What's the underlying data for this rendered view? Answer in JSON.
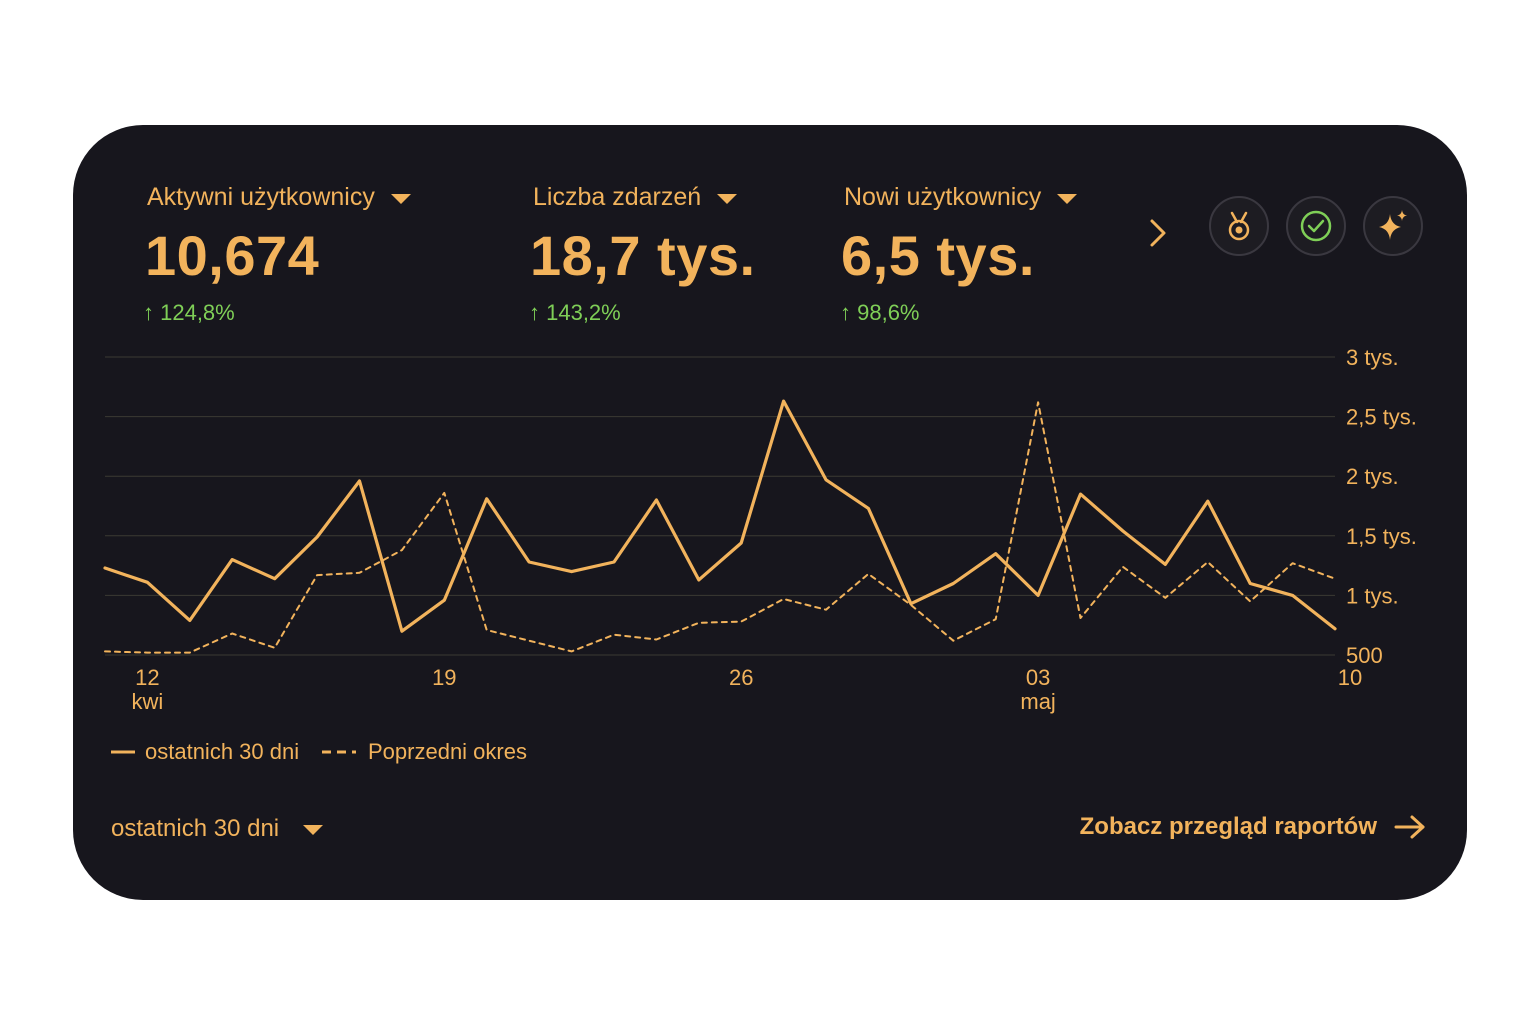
{
  "colors": {
    "background": "#17161d",
    "accent": "#f2b35c",
    "positive": "#7fcf57",
    "grid": "#3b3a33"
  },
  "metrics": [
    {
      "title": "Aktywni użytkownicy",
      "value": "10,674",
      "change": "↑ 124,8%"
    },
    {
      "title": "Liczba zdarzeń",
      "value": "18,7 tys.",
      "change": "↑ 143,2%"
    },
    {
      "title": "Nowi użytkownicy",
      "value": "6,5 tys.",
      "change": "↑ 98,6%"
    }
  ],
  "icons": {
    "next": "chevron-right-icon",
    "buttons": [
      "medal-icon",
      "check-circle-icon",
      "sparkle-icon"
    ]
  },
  "chart_data": {
    "type": "line",
    "x_tick_labels": [
      {
        "day": "12",
        "month": "kwi"
      },
      {
        "day": "19",
        "month": ""
      },
      {
        "day": "26",
        "month": ""
      },
      {
        "day": "03",
        "month": "maj"
      },
      {
        "day": "10",
        "month": ""
      }
    ],
    "y_tick_labels": [
      "500",
      "1 tys.",
      "1,5 tys.",
      "2 tys.",
      "2,5 tys.",
      "3 tys."
    ],
    "y_ticks": [
      500,
      1000,
      1500,
      2000,
      2500,
      3000
    ],
    "ylim": [
      500,
      3000
    ],
    "grid": true,
    "legend_position": "bottom-left",
    "series": [
      {
        "name": "ostatnich 30 dni",
        "style": "solid",
        "values": [
          1230,
          1110,
          790,
          1300,
          1140,
          1490,
          1960,
          700,
          960,
          1810,
          1280,
          1200,
          1280,
          1800,
          1130,
          1440,
          2630,
          1970,
          1730,
          930,
          1100,
          1350,
          1000,
          1850,
          1540,
          1260,
          1790,
          1100,
          1000,
          720
        ]
      },
      {
        "name": "Poprzedni okres",
        "style": "dashed",
        "values": [
          530,
          520,
          520,
          680,
          560,
          1170,
          1190,
          1380,
          1860,
          710,
          620,
          530,
          670,
          630,
          770,
          780,
          970,
          880,
          1180,
          920,
          620,
          800,
          2620,
          810,
          1240,
          980,
          1280,
          950,
          1270,
          1140
        ]
      }
    ]
  },
  "footer": {
    "period_label": "ostatnich 30 dni",
    "report_link": "Zobacz przegląd raportów"
  }
}
